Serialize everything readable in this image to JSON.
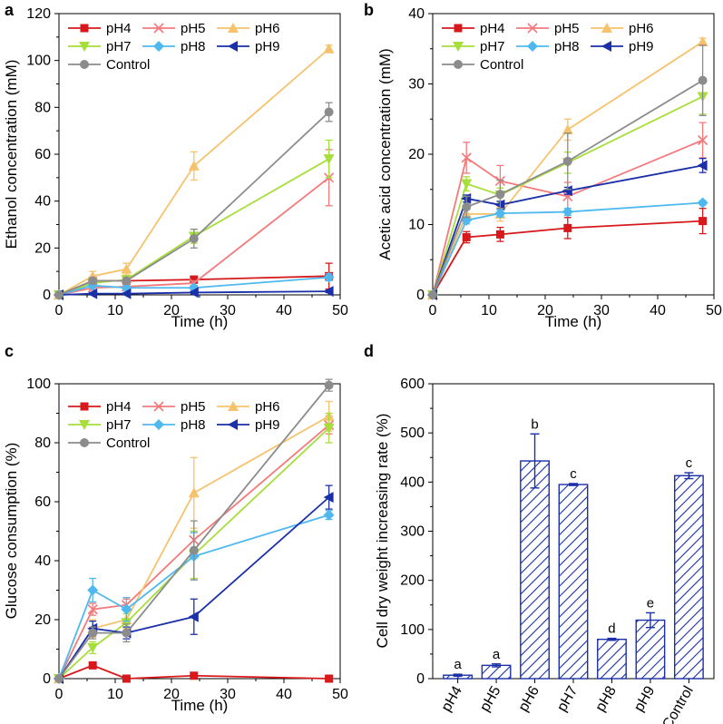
{
  "colors": {
    "pH4": "#d7191c",
    "pH5": "#f4797b",
    "pH6": "#f6c26b",
    "pH7": "#a6de3a",
    "pH8": "#4fb9ef",
    "pH9": "#1a2fa8",
    "Control": "#8c8c8c",
    "bars": "#1a2fa8"
  },
  "chart_data": [
    {
      "panel": "a",
      "type": "line",
      "xlabel": "Time (h)",
      "ylabel": "Ethanol concentration (mM)",
      "xlim": [
        0,
        50
      ],
      "ylim": [
        0,
        120
      ],
      "xticks": [
        "0",
        "10",
        "20",
        "30",
        "40",
        "50"
      ],
      "yticks": [
        "0",
        "20",
        "40",
        "60",
        "80",
        "100",
        "120"
      ],
      "x": [
        0,
        6,
        12,
        24,
        48
      ],
      "legend": [
        "pH4",
        "pH5",
        "pH6",
        "pH7",
        "pH8",
        "pH9",
        "Control"
      ],
      "series": [
        {
          "name": "pH4",
          "marker": "square",
          "values": [
            0,
            6,
            6,
            6.5,
            8
          ],
          "errors": [
            0,
            1,
            1,
            1.5,
            5.5
          ]
        },
        {
          "name": "pH5",
          "marker": "x",
          "values": [
            0,
            3,
            3.5,
            5,
            50
          ],
          "errors": [
            0,
            1,
            1,
            1,
            12
          ]
        },
        {
          "name": "pH6",
          "marker": "triangle-up",
          "values": [
            0,
            8,
            11,
            55,
            105
          ],
          "errors": [
            0,
            2,
            2.5,
            6,
            1.5
          ]
        },
        {
          "name": "pH7",
          "marker": "triangle-down",
          "values": [
            0,
            5,
            6.5,
            25,
            58
          ],
          "errors": [
            0,
            1,
            1.5,
            3,
            8
          ]
        },
        {
          "name": "pH8",
          "marker": "diamond",
          "values": [
            0,
            4,
            3,
            3,
            7.5
          ],
          "errors": [
            0,
            1,
            1,
            1,
            1.5
          ]
        },
        {
          "name": "pH9",
          "marker": "triangle-left",
          "values": [
            0,
            0.5,
            0.5,
            1,
            1.5
          ],
          "errors": [
            0,
            0.5,
            0.5,
            0.5,
            0.5
          ]
        },
        {
          "name": "Control",
          "marker": "circle",
          "values": [
            0,
            6,
            6,
            24,
            78
          ],
          "errors": [
            0,
            1,
            1,
            4,
            4
          ]
        }
      ]
    },
    {
      "panel": "b",
      "type": "line",
      "xlabel": "Time (h)",
      "ylabel": "Acetic acid concentration (mM)",
      "xlim": [
        0,
        50
      ],
      "ylim": [
        0,
        40
      ],
      "xticks": [
        "0",
        "10",
        "20",
        "30",
        "40",
        "50"
      ],
      "yticks": [
        "0",
        "10",
        "20",
        "30",
        "40"
      ],
      "x": [
        0,
        6,
        12,
        24,
        48
      ],
      "legend": [
        "pH4",
        "pH5",
        "pH6",
        "pH7",
        "pH8",
        "pH9",
        "Control"
      ],
      "series": [
        {
          "name": "pH4",
          "marker": "square",
          "values": [
            0,
            8.2,
            8.6,
            9.5,
            10.5
          ],
          "errors": [
            0,
            0.8,
            1,
            1.5,
            1.8
          ]
        },
        {
          "name": "pH5",
          "marker": "x",
          "values": [
            0,
            19.5,
            16.2,
            14,
            22
          ],
          "errors": [
            0,
            2.2,
            2.2,
            2,
            2.5
          ]
        },
        {
          "name": "pH6",
          "marker": "triangle-up",
          "values": [
            0,
            11.5,
            11.5,
            23.5,
            36
          ],
          "errors": [
            0,
            1,
            1,
            1.5,
            0.5
          ]
        },
        {
          "name": "pH7",
          "marker": "triangle-down",
          "values": [
            0,
            15.8,
            14.2,
            18.8,
            28.2
          ],
          "errors": [
            0,
            1,
            1,
            1.5,
            2.5
          ]
        },
        {
          "name": "pH8",
          "marker": "diamond",
          "values": [
            0,
            10.6,
            11.6,
            11.8,
            13.1
          ],
          "errors": [
            0,
            0.5,
            0.5,
            0.5,
            0.3
          ]
        },
        {
          "name": "pH9",
          "marker": "triangle-left",
          "values": [
            0,
            13.7,
            12.8,
            14.8,
            18.4
          ],
          "errors": [
            0,
            0.5,
            0.5,
            0.5,
            1
          ]
        },
        {
          "name": "Control",
          "marker": "circle",
          "values": [
            0,
            12.5,
            14.3,
            19,
            30.5
          ],
          "errors": [
            0,
            1.5,
            2,
            4,
            5
          ]
        }
      ]
    },
    {
      "panel": "c",
      "type": "line",
      "xlabel": "Time (h)",
      "ylabel": "Glucose consumption (%)",
      "xlim": [
        0,
        50
      ],
      "ylim": [
        0,
        100
      ],
      "xticks": [
        "0",
        "10",
        "20",
        "30",
        "40",
        "50"
      ],
      "yticks": [
        "0",
        "20",
        "40",
        "60",
        "80",
        "100"
      ],
      "x": [
        0,
        6,
        12,
        24,
        48
      ],
      "legend": [
        "pH4",
        "pH5",
        "pH6",
        "pH7",
        "pH8",
        "pH9",
        "Control"
      ],
      "series": [
        {
          "name": "pH4",
          "marker": "square",
          "values": [
            0,
            4.5,
            0,
            1,
            0
          ],
          "errors": [
            0,
            0.5,
            0,
            0.5,
            0
          ]
        },
        {
          "name": "pH5",
          "marker": "x",
          "values": [
            0,
            23.5,
            25,
            47,
            86
          ],
          "errors": [
            0,
            2,
            2,
            3,
            3
          ]
        },
        {
          "name": "pH6",
          "marker": "triangle-up",
          "values": [
            0,
            17,
            20,
            63,
            89
          ],
          "errors": [
            0,
            3,
            3,
            12,
            5
          ]
        },
        {
          "name": "pH7",
          "marker": "triangle-down",
          "values": [
            0,
            10.5,
            19,
            42,
            85
          ],
          "errors": [
            0,
            2,
            3,
            8,
            5
          ]
        },
        {
          "name": "pH8",
          "marker": "diamond",
          "values": [
            0,
            30,
            23.5,
            41.5,
            55.5
          ],
          "errors": [
            0,
            4,
            4,
            8,
            1.5
          ]
        },
        {
          "name": "pH9",
          "marker": "triangle-left",
          "values": [
            0,
            17,
            15.5,
            21,
            61.5
          ],
          "errors": [
            0,
            2.5,
            2,
            6,
            4
          ]
        },
        {
          "name": "Control",
          "marker": "circle",
          "values": [
            0,
            15.5,
            15.5,
            43.5,
            99.5
          ],
          "errors": [
            0,
            2,
            3,
            10,
            2
          ]
        }
      ]
    },
    {
      "panel": "d",
      "type": "bar",
      "ylabel": "Cell dry weight increasing rate (%)",
      "ylim": [
        0,
        600
      ],
      "yticks": [
        "0",
        "100",
        "200",
        "300",
        "400",
        "500",
        "600"
      ],
      "categories": [
        "pH4",
        "pH5",
        "pH6",
        "pH7",
        "pH8",
        "pH9",
        "Control"
      ],
      "values": [
        7,
        27,
        443,
        395,
        80,
        119,
        413
      ],
      "errors": [
        2,
        3,
        55,
        2,
        2,
        15,
        6
      ],
      "significance": [
        "a",
        "a",
        "b",
        "c",
        "d",
        "e",
        "c"
      ]
    }
  ]
}
